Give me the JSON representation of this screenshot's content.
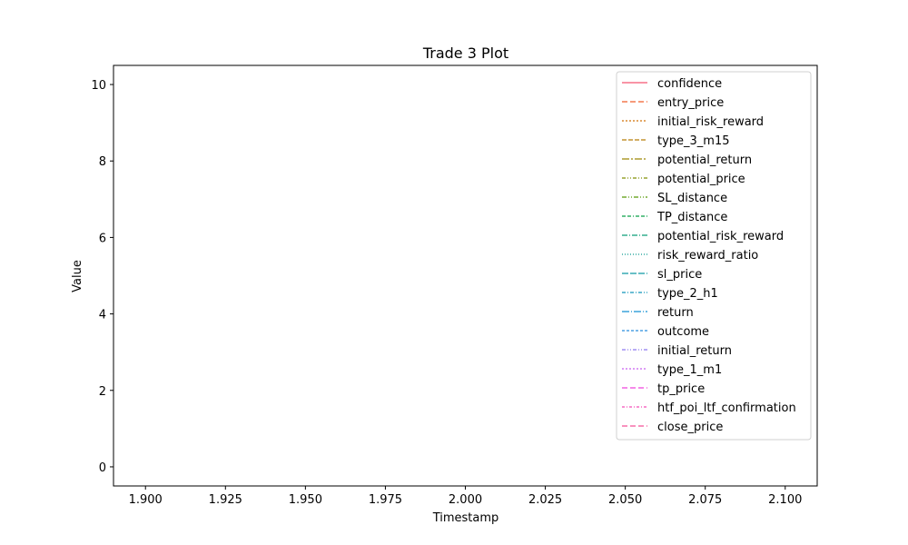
{
  "chart_data": {
    "type": "line",
    "title": "Trade 3 Plot",
    "xlabel": "Timestamp",
    "ylabel": "Value",
    "xlim": [
      1.89,
      2.11
    ],
    "ylim": [
      -0.5,
      10.5
    ],
    "xticks": [
      "1.900",
      "1.925",
      "1.950",
      "1.975",
      "2.000",
      "2.025",
      "2.050",
      "2.075",
      "2.100"
    ],
    "xtick_values": [
      1.9,
      1.925,
      1.95,
      1.975,
      2.0,
      2.025,
      2.05,
      2.075,
      2.1
    ],
    "yticks": [
      "0",
      "2",
      "4",
      "6",
      "8",
      "10"
    ],
    "ytick_values": [
      0,
      2,
      4,
      6,
      8,
      10
    ],
    "grid": false,
    "legend_position": "upper right",
    "series": [
      {
        "name": "confidence",
        "color": "#f77189",
        "dash": "solid",
        "x": [],
        "y": []
      },
      {
        "name": "entry_price",
        "color": "#f3794e",
        "dash": "6,3",
        "x": [],
        "y": []
      },
      {
        "name": "initial_risk_reward",
        "color": "#da8a32",
        "dash": "2,2",
        "x": [],
        "y": []
      },
      {
        "name": "type_3_m15",
        "color": "#c39432",
        "dash": "5,2",
        "x": [],
        "y": []
      },
      {
        "name": "potential_return",
        "color": "#ad9c31",
        "dash": "8,2,2,2",
        "x": [],
        "y": []
      },
      {
        "name": "potential_price",
        "color": "#97a331",
        "dash": "4,2,1,2,1,2",
        "x": [],
        "y": []
      },
      {
        "name": "SL_distance",
        "color": "#73ac31",
        "dash": "5,2,1,2,1,2",
        "x": [],
        "y": []
      },
      {
        "name": "TP_distance",
        "color": "#32b166",
        "dash": "4,2,4,2,1,2",
        "x": [],
        "y": []
      },
      {
        "name": "potential_risk_reward",
        "color": "#34ae8e",
        "dash": "6,2,1,2",
        "x": [],
        "y": []
      },
      {
        "name": "risk_reward_ratio",
        "color": "#35aca4",
        "dash": "1,2",
        "x": [],
        "y": []
      },
      {
        "name": "sl_price",
        "color": "#36aab4",
        "dash": "7,2",
        "x": [],
        "y": []
      },
      {
        "name": "type_2_h1",
        "color": "#38a7c5",
        "dash": "4,2,1,2",
        "x": [],
        "y": []
      },
      {
        "name": "return",
        "color": "#3ba3dc",
        "dash": "8,2,1,2",
        "x": [],
        "y": []
      },
      {
        "name": "outcome",
        "color": "#4ea0e4",
        "dash": "3,2",
        "x": [],
        "y": []
      },
      {
        "name": "initial_return",
        "color": "#a18ff4",
        "dash": "4,2,1,2,1,2",
        "x": [],
        "y": []
      },
      {
        "name": "type_1_m1",
        "color": "#d27cf4",
        "dash": "2,2",
        "x": [],
        "y": []
      },
      {
        "name": "tp_price",
        "color": "#f264e4",
        "dash": "6,3",
        "x": [],
        "y": []
      },
      {
        "name": "htf_poi_ltf_confirmation",
        "color": "#f56cc4",
        "dash": "3,2,1,2",
        "x": [],
        "y": []
      },
      {
        "name": "close_price",
        "color": "#f66fa8",
        "dash": "6,3",
        "x": [],
        "y": []
      }
    ]
  }
}
